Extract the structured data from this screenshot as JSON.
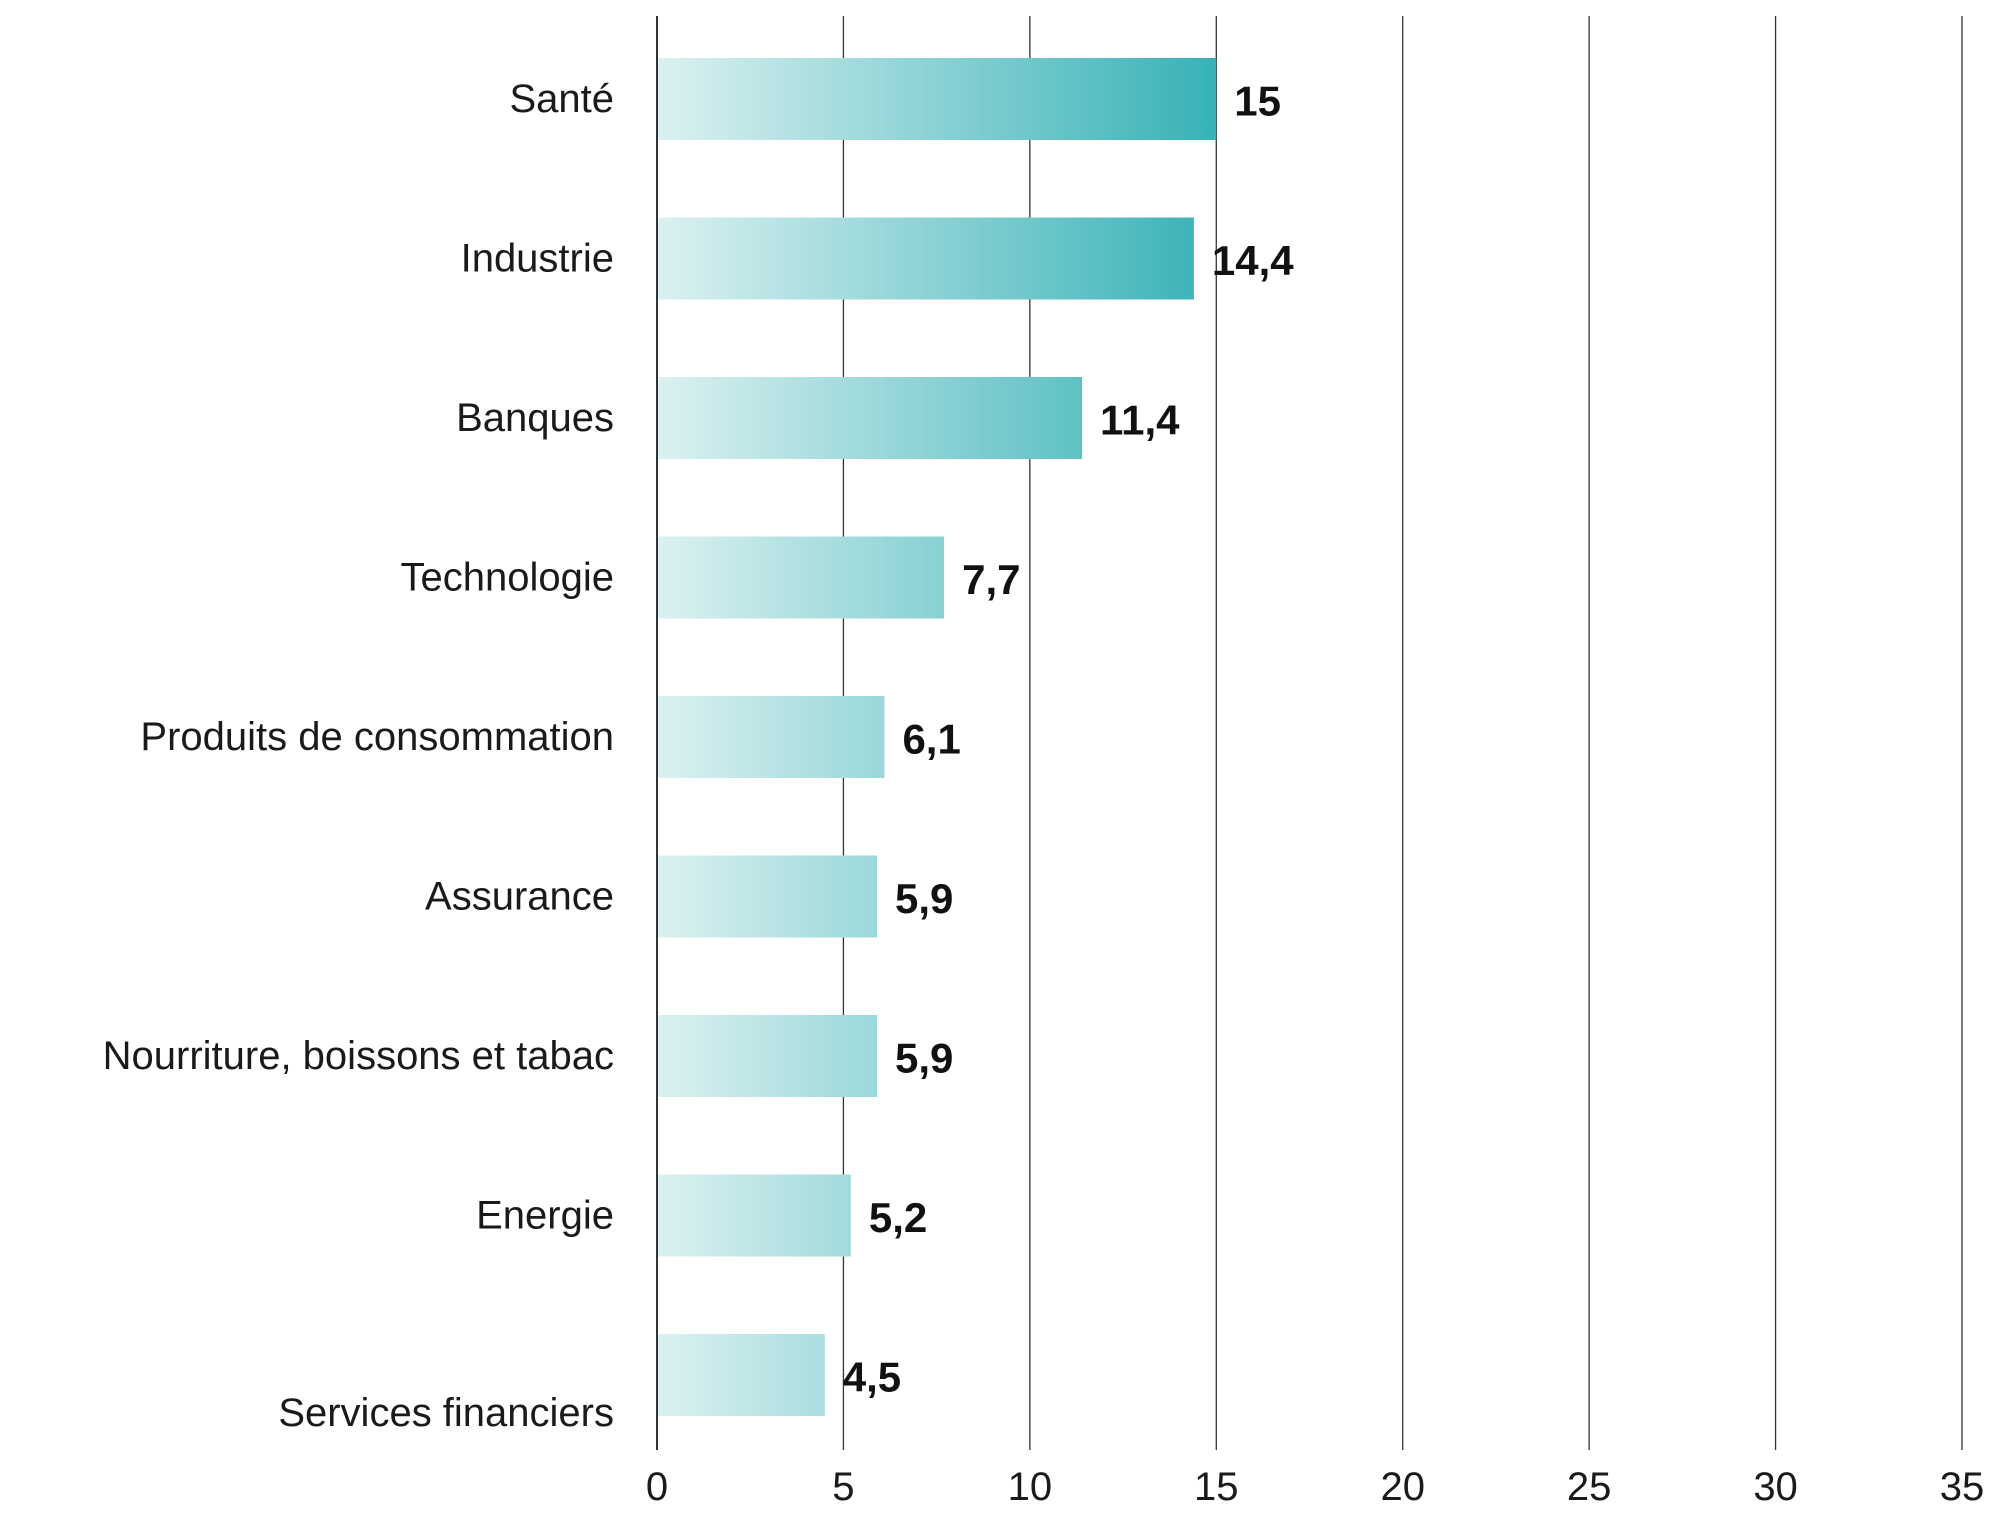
{
  "chart_data": {
    "type": "bar",
    "orientation": "horizontal",
    "categories": [
      "Santé",
      "Industrie",
      "Banques",
      "Technologie",
      "Produits de consommation",
      "Assurance",
      "Nourriture, boissons et tabac",
      "Energie",
      "Services financiers"
    ],
    "values": [
      15,
      14.4,
      11.4,
      7.7,
      6.1,
      5.9,
      5.9,
      5.2,
      4.5
    ],
    "value_labels": [
      "15",
      "14,4",
      "11,4",
      "7,7",
      "6,1",
      "5,9",
      "5,9",
      "5,2",
      "4,5"
    ],
    "title": "",
    "xlabel": "",
    "ylabel": "",
    "xlim": [
      0,
      35
    ],
    "xticks": [
      0,
      5,
      10,
      15,
      20,
      25,
      30,
      35
    ],
    "xtick_labels": [
      "0",
      "5",
      "10",
      "15",
      "20",
      "25",
      "30",
      "35"
    ],
    "grid": "vertical",
    "legend": "none",
    "colors": {
      "bar_start": "#dcf1f1",
      "bar_end": "#37b2b7",
      "grid": "#333333",
      "text": "#1a1a1a"
    }
  }
}
